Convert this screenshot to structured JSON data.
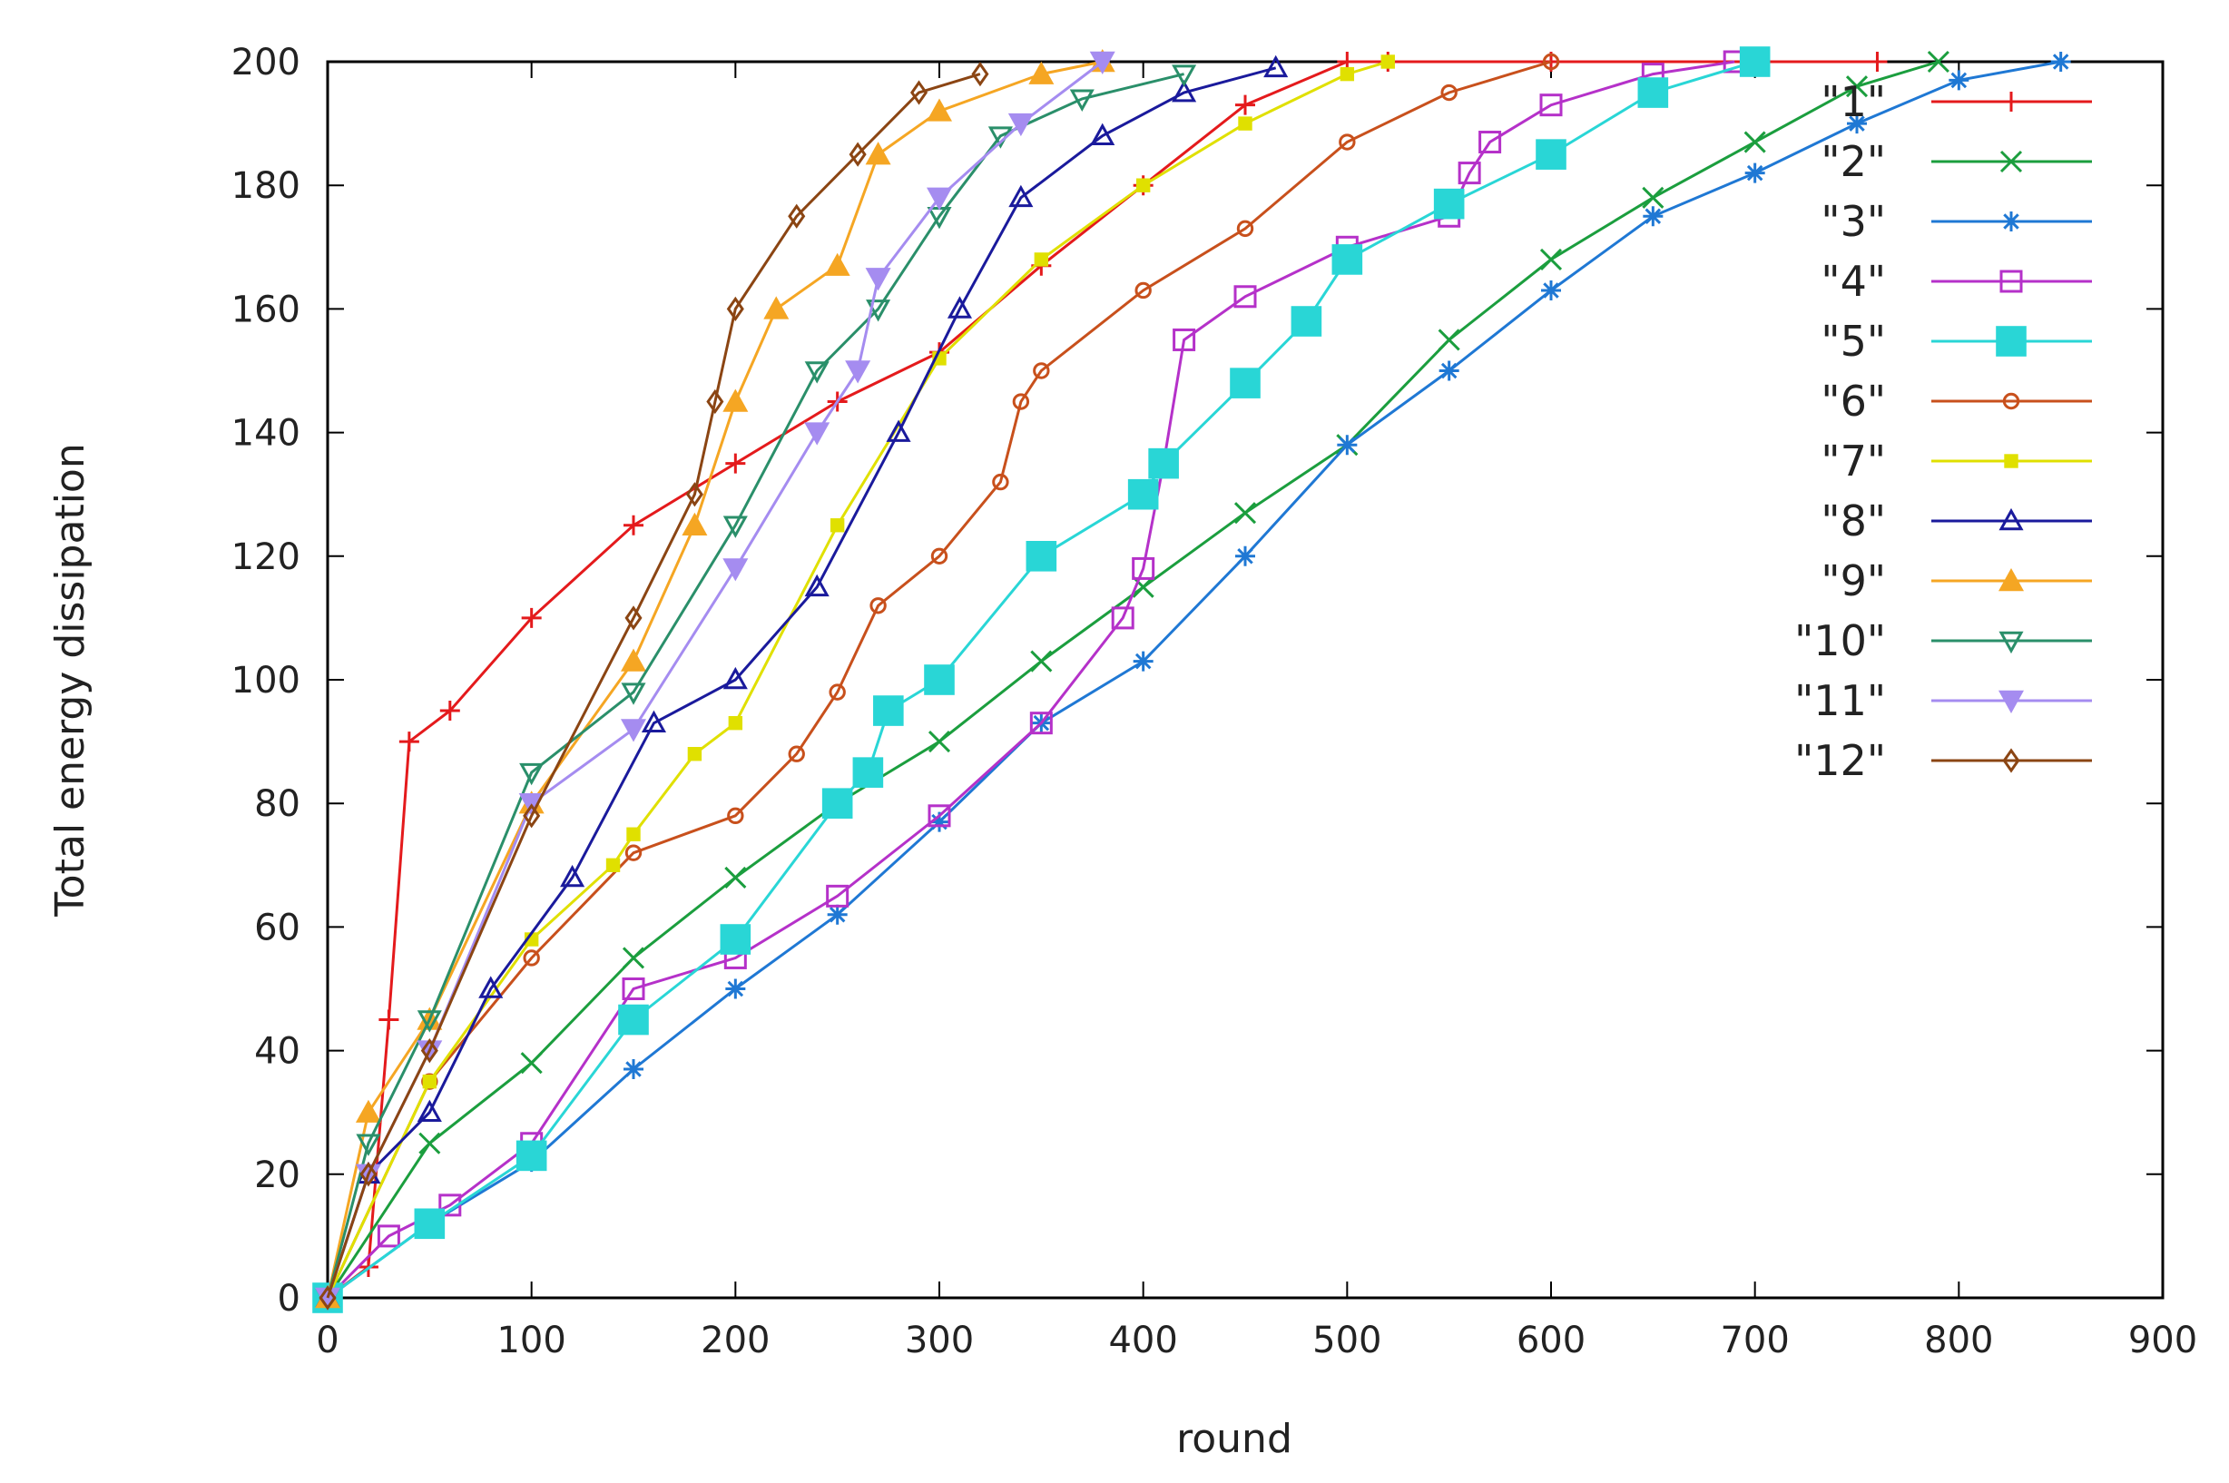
{
  "chart_data": {
    "type": "line",
    "title": "",
    "xlabel": "round",
    "ylabel": "Total energy dissipation",
    "xlim": [
      0,
      900
    ],
    "ylim": [
      0,
      200
    ],
    "xticks": [
      0,
      100,
      200,
      300,
      400,
      500,
      600,
      700,
      800,
      900
    ],
    "yticks": [
      0,
      20,
      40,
      60,
      80,
      100,
      120,
      140,
      160,
      180,
      200
    ],
    "grid": false,
    "legend_position": "top-right",
    "series": [
      {
        "name": "\"1\"",
        "color": "#e41a1c",
        "marker": "plus",
        "x": [
          0,
          20,
          30,
          40,
          60,
          100,
          150,
          200,
          250,
          300,
          350,
          400,
          450,
          500,
          520,
          600,
          700,
          760
        ],
        "y": [
          0,
          5,
          45,
          90,
          95,
          110,
          125,
          135,
          145,
          153,
          167,
          180,
          193,
          200,
          200,
          200,
          200,
          200
        ]
      },
      {
        "name": "\"2\"",
        "color": "#1b9e3e",
        "marker": "x",
        "x": [
          0,
          50,
          100,
          150,
          200,
          250,
          300,
          350,
          400,
          450,
          500,
          550,
          600,
          650,
          700,
          750,
          790
        ],
        "y": [
          0,
          25,
          38,
          55,
          68,
          80,
          90,
          103,
          115,
          127,
          138,
          155,
          168,
          178,
          187,
          196,
          200
        ]
      },
      {
        "name": "\"3\"",
        "color": "#1f78d4",
        "marker": "star",
        "x": [
          0,
          50,
          100,
          150,
          200,
          250,
          300,
          350,
          400,
          450,
          500,
          550,
          600,
          650,
          700,
          750,
          800,
          850
        ],
        "y": [
          0,
          12,
          22,
          37,
          50,
          62,
          77,
          93,
          103,
          120,
          138,
          150,
          163,
          175,
          182,
          190,
          197,
          200
        ]
      },
      {
        "name": "\"4\"",
        "color": "#b531c9",
        "marker": "square-open",
        "x": [
          0,
          30,
          60,
          100,
          150,
          200,
          250,
          300,
          350,
          390,
          400,
          410,
          420,
          450,
          500,
          550,
          560,
          570,
          600,
          650,
          690
        ],
        "y": [
          0,
          10,
          15,
          25,
          50,
          55,
          65,
          78,
          93,
          110,
          118,
          135,
          155,
          162,
          170,
          175,
          182,
          187,
          193,
          198,
          200
        ]
      },
      {
        "name": "\"5\"",
        "color": "#29d6d6",
        "marker": "square-filled",
        "x": [
          0,
          50,
          100,
          150,
          200,
          250,
          265,
          275,
          300,
          350,
          400,
          410,
          450,
          480,
          500,
          550,
          600,
          650,
          700
        ],
        "y": [
          0,
          12,
          23,
          45,
          58,
          80,
          85,
          95,
          100,
          120,
          130,
          135,
          148,
          158,
          168,
          177,
          185,
          195,
          200
        ]
      },
      {
        "name": "\"6\"",
        "color": "#c8501c",
        "marker": "circle-open",
        "x": [
          0,
          50,
          100,
          150,
          200,
          230,
          250,
          270,
          300,
          330,
          340,
          350,
          400,
          450,
          500,
          550,
          600
        ],
        "y": [
          0,
          35,
          55,
          72,
          78,
          88,
          98,
          112,
          120,
          132,
          145,
          150,
          163,
          173,
          187,
          195,
          200
        ]
      },
      {
        "name": "\"7\"",
        "color": "#e0e000",
        "marker": "square-small",
        "x": [
          0,
          50,
          100,
          140,
          150,
          180,
          200,
          250,
          300,
          350,
          400,
          450,
          500,
          520
        ],
        "y": [
          0,
          35,
          58,
          70,
          75,
          88,
          93,
          125,
          152,
          168,
          180,
          190,
          198,
          200
        ]
      },
      {
        "name": "\"8\"",
        "color": "#1a1a9c",
        "marker": "triangle-open",
        "x": [
          0,
          20,
          50,
          80,
          120,
          160,
          200,
          240,
          280,
          310,
          340,
          380,
          420,
          465
        ],
        "y": [
          0,
          20,
          30,
          50,
          68,
          93,
          100,
          115,
          140,
          160,
          178,
          188,
          195,
          199
        ]
      },
      {
        "name": "\"9\"",
        "color": "#f5a623",
        "marker": "triangle-filled",
        "x": [
          0,
          20,
          50,
          100,
          150,
          180,
          200,
          220,
          250,
          270,
          300,
          350,
          380
        ],
        "y": [
          0,
          30,
          45,
          80,
          103,
          125,
          145,
          160,
          167,
          185,
          192,
          198,
          200
        ]
      },
      {
        "name": "\"10\"",
        "color": "#2a8f6a",
        "marker": "triangle-down-open",
        "x": [
          0,
          20,
          50,
          100,
          150,
          200,
          240,
          270,
          300,
          330,
          370,
          420
        ],
        "y": [
          0,
          25,
          45,
          85,
          98,
          125,
          150,
          160,
          175,
          188,
          194,
          198
        ]
      },
      {
        "name": "\"11\"",
        "color": "#a58cf0",
        "marker": "triangle-down-filled",
        "x": [
          0,
          20,
          50,
          100,
          150,
          200,
          240,
          260,
          270,
          300,
          340,
          380
        ],
        "y": [
          0,
          20,
          40,
          80,
          92,
          118,
          140,
          150,
          165,
          178,
          190,
          200
        ]
      },
      {
        "name": "\"12\"",
        "color": "#8b4513",
        "marker": "diamond-open",
        "x": [
          0,
          20,
          50,
          100,
          150,
          180,
          190,
          200,
          230,
          260,
          290,
          320
        ],
        "y": [
          0,
          20,
          40,
          78,
          110,
          130,
          145,
          160,
          175,
          185,
          195,
          198
        ]
      }
    ]
  }
}
